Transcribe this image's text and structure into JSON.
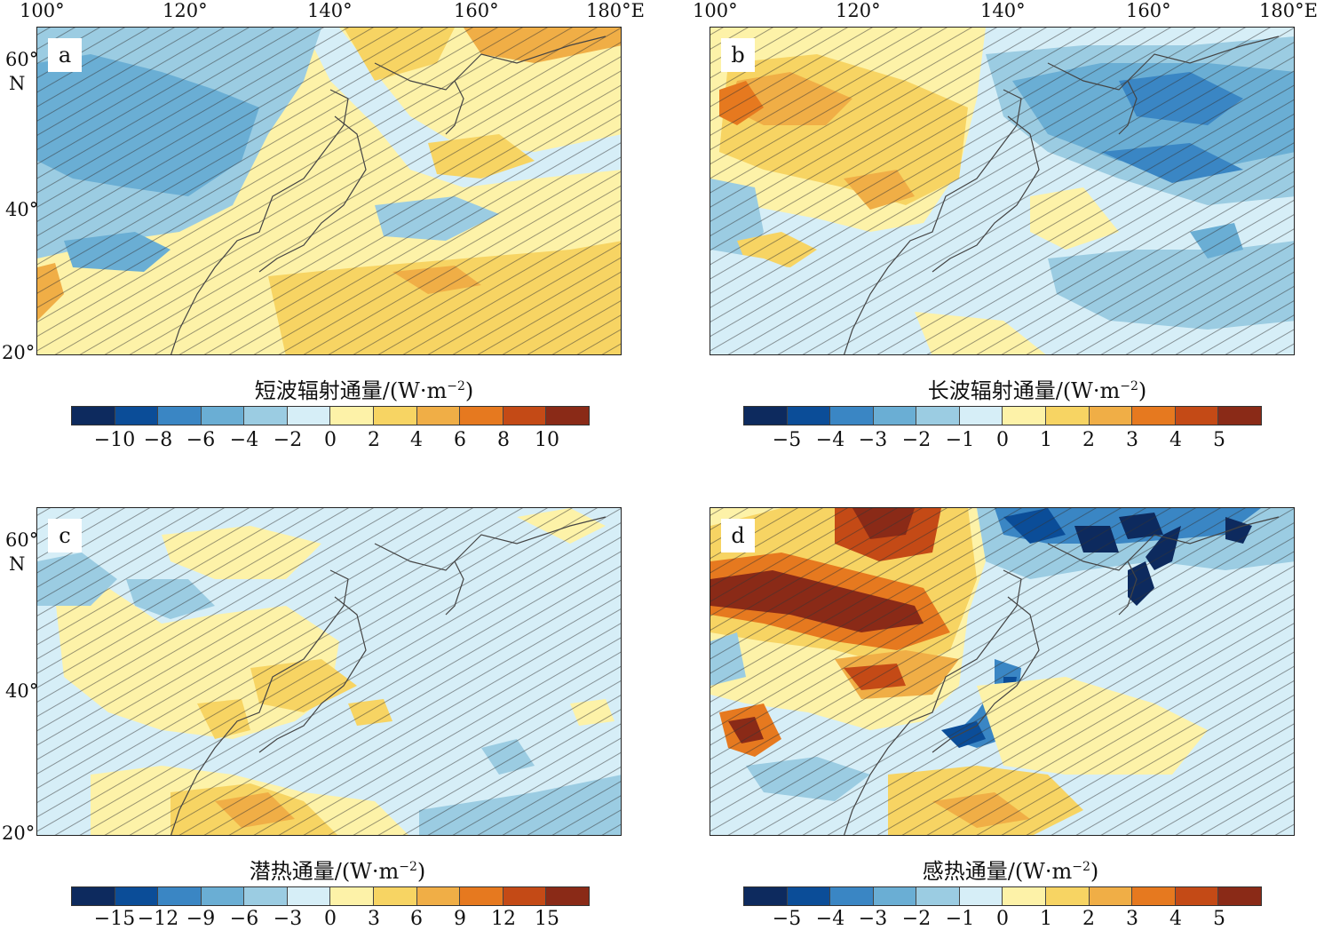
{
  "figure": {
    "lon_ticks": [
      "100°",
      "120°",
      "140°",
      "160°",
      "180°E"
    ],
    "lat_ticks": [
      "60°",
      "40°",
      "20°"
    ],
    "lat_unit": "N",
    "unit_prefix": "/(W·m",
    "unit_exp": "−2",
    "unit_suffix": ")"
  },
  "colors": {
    "neg5": "#0d2a5e",
    "neg4": "#0b4d98",
    "neg3": "#3a86c4",
    "neg2": "#6aaed4",
    "neg1": "#9bcce2",
    "neg0": "#d6eef7",
    "pos0": "#fdf2a8",
    "pos1": "#f7d463",
    "pos2": "#f0ae46",
    "pos3": "#e6791f",
    "pos4": "#c44a16",
    "pos5": "#8a2a17"
  },
  "panels": [
    {
      "letter": "a",
      "title": "短波辐射通量",
      "cbar_ticks": [
        "−10",
        "−8",
        "−6",
        "−4",
        "−2",
        "0",
        "2",
        "4",
        "6",
        "8",
        "10"
      ],
      "show_lat_ticks": true
    },
    {
      "letter": "b",
      "title": "长波辐射通量",
      "cbar_ticks": [
        "−5",
        "−4",
        "−3",
        "−2",
        "−1",
        "0",
        "1",
        "2",
        "3",
        "4",
        "5"
      ],
      "show_lat_ticks": false
    },
    {
      "letter": "c",
      "title": "潜热通量",
      "cbar_ticks": [
        "−15",
        "−12",
        "−9",
        "−6",
        "−3",
        "0",
        "3",
        "6",
        "9",
        "12",
        "15"
      ],
      "show_lat_ticks": true
    },
    {
      "letter": "d",
      "title": "感热通量",
      "cbar_ticks": [
        "−5",
        "−4",
        "−3",
        "−2",
        "−1",
        "0",
        "1",
        "2",
        "3",
        "4",
        "5"
      ],
      "show_lat_ticks": false
    }
  ]
}
